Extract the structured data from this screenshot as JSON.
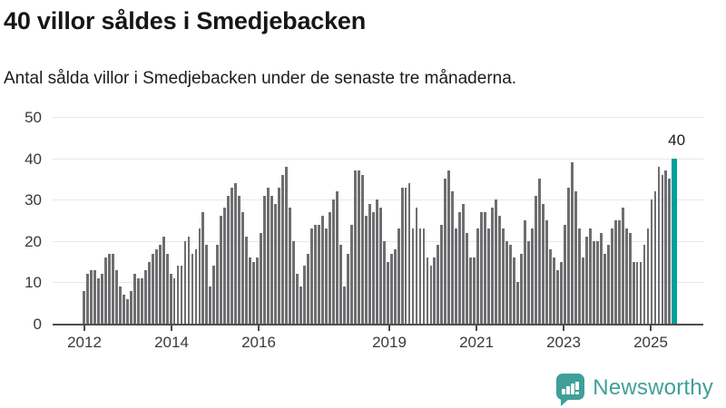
{
  "header": {
    "title": "40 villor såldes i Smedjebacken",
    "subtitle": "Antal sålda villor i Smedjebacken under de senaste tre månaderna."
  },
  "chart_data": {
    "type": "bar",
    "title": "40 villor såldes i Smedjebacken",
    "subtitle": "Antal sålda villor i Smedjebacken under de senaste tre månaderna.",
    "ylabel": "",
    "xlabel": "",
    "ylim": [
      0,
      50
    ],
    "grid": "horizontal",
    "y_ticks": [
      0,
      10,
      20,
      30,
      40,
      50
    ],
    "x_start_month": "2012-01",
    "period": "monthly, rolling 3-month count",
    "x_ticks": [
      {
        "label": "2012",
        "index": 0
      },
      {
        "label": "2014",
        "index": 24
      },
      {
        "label": "2016",
        "index": 48
      },
      {
        "label": "2019",
        "index": 84
      },
      {
        "label": "2021",
        "index": 108
      },
      {
        "label": "2023",
        "index": 132
      },
      {
        "label": "2025",
        "index": 156
      }
    ],
    "values": [
      8,
      12,
      13,
      13,
      11,
      12,
      16,
      17,
      17,
      13,
      9,
      7,
      6,
      8,
      12,
      11,
      11,
      13,
      15,
      17,
      18,
      19,
      21,
      17,
      12,
      11,
      14,
      14,
      20,
      21,
      17,
      18,
      23,
      27,
      19,
      9,
      14,
      19,
      26,
      28,
      31,
      33,
      34,
      31,
      27,
      21,
      16,
      15,
      16,
      22,
      31,
      33,
      31,
      29,
      33,
      36,
      38,
      28,
      20,
      12,
      9,
      14,
      17,
      23,
      24,
      24,
      26,
      23,
      27,
      30,
      32,
      19,
      9,
      17,
      24,
      37,
      37,
      36,
      26,
      29,
      27,
      30,
      28,
      20,
      15,
      17,
      18,
      23,
      33,
      33,
      34,
      23,
      28,
      23,
      23,
      16,
      14,
      16,
      19,
      24,
      35,
      37,
      32,
      23,
      27,
      29,
      22,
      16,
      16,
      23,
      27,
      27,
      23,
      28,
      30,
      26,
      23,
      20,
      19,
      16,
      10,
      17,
      25,
      20,
      23,
      31,
      35,
      29,
      25,
      18,
      16,
      13,
      15,
      24,
      33,
      39,
      32,
      23,
      16,
      21,
      23,
      20,
      20,
      22,
      17,
      19,
      23,
      25,
      25,
      28,
      23,
      22,
      15,
      15,
      15,
      19,
      23,
      30,
      32,
      38,
      36,
      37,
      35,
      40
    ],
    "highlight_last": true,
    "annotation": "40",
    "bar_color": "#6e6e71",
    "highlight_color": "#00a19c",
    "legend": "none"
  },
  "logo": {
    "text": "Newsworthy",
    "color": "#3f9f99",
    "icon": "newsworthy-chart-bubble-icon"
  }
}
